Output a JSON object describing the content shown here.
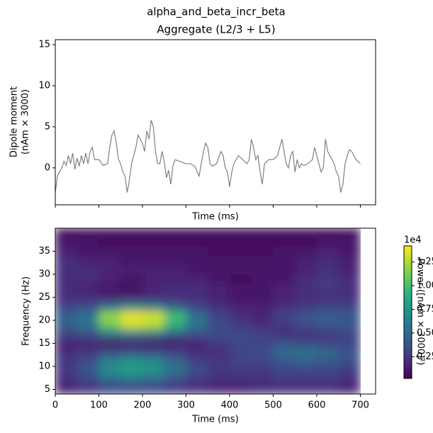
{
  "title": "alpha_and_beta_incr_beta",
  "chart_data": [
    {
      "type": "line",
      "title": "Aggregate (L2/3 + L5)",
      "xlabel": "Time (ms)",
      "ylabel": [
        "Dipole moment",
        "(nAm × 3000)"
      ],
      "color": "#808080",
      "x": [
        0,
        5,
        10,
        15,
        20,
        25,
        30,
        35,
        40,
        45,
        50,
        55,
        60,
        65,
        70,
        75,
        80,
        85,
        90,
        100,
        110,
        120,
        125,
        130,
        135,
        140,
        145,
        150,
        155,
        160,
        165,
        170,
        175,
        180,
        185,
        190,
        195,
        200,
        205,
        210,
        215,
        220,
        225,
        230,
        235,
        240,
        245,
        250,
        255,
        260,
        265,
        270,
        275,
        285,
        300,
        310,
        320,
        330,
        335,
        340,
        345,
        350,
        355,
        360,
        370,
        380,
        385,
        390,
        395,
        400,
        405,
        410,
        420,
        430,
        440,
        445,
        450,
        455,
        460,
        465,
        470,
        475,
        480,
        490,
        500,
        510,
        515,
        520,
        525,
        530,
        535,
        540,
        545,
        550,
        555,
        560,
        565,
        570,
        580,
        590,
        595,
        600,
        605,
        610,
        615,
        620,
        625,
        630,
        640,
        645,
        650,
        655,
        660,
        665,
        670,
        675,
        680,
        690,
        700
      ],
      "values": [
        -3,
        -1,
        -0.5,
        0,
        0.8,
        0.3,
        1.5,
        0.5,
        1.8,
        -0.2,
        1.2,
        0.2,
        1.5,
        0.5,
        1.8,
        0.5,
        2.0,
        2.5,
        1.0,
        1.0,
        0.3,
        0.5,
        2.5,
        4.0,
        4.5,
        3.0,
        1.0,
        0.5,
        -0.5,
        -1.0,
        -3.0,
        -1.5,
        0.5,
        1.5,
        2.5,
        4.0,
        3.5,
        3.0,
        2.0,
        4.5,
        3.5,
        5.8,
        5.0,
        2.0,
        0.5,
        0.5,
        2.0,
        0.8,
        -1.2,
        -0.3,
        -2.0,
        0.3,
        1.0,
        0.8,
        0.5,
        0.5,
        0.2,
        -1.0,
        0.5,
        2.0,
        3.0,
        2.5,
        0.5,
        0.2,
        0.5,
        2.0,
        1.5,
        0.0,
        -0.5,
        -2.3,
        -0.5,
        0.5,
        1.5,
        1.0,
        0.5,
        1.0,
        3.5,
        2.5,
        1.0,
        1.5,
        -0.5,
        -2.0,
        0.5,
        1.0,
        1.0,
        1.5,
        2.5,
        3.5,
        2.0,
        0.5,
        0.0,
        1.5,
        2.0,
        -0.5,
        1.0,
        0.0,
        0.5,
        0.3,
        0.5,
        1.0,
        2.5,
        1.5,
        0.5,
        -0.5,
        0.0,
        3.5,
        2.0,
        1.5,
        0.5,
        -0.5,
        -1.0,
        -3.0,
        -2.0,
        0.5,
        1.5,
        2.2,
        2.0,
        1.0,
        0.5
      ],
      "xlim": [
        0,
        735
      ],
      "xticks": [
        0,
        100,
        200,
        300,
        400,
        500,
        600,
        700
      ],
      "ylim": [
        -4.5,
        15.6
      ],
      "yticks": [
        0,
        5,
        10,
        15
      ]
    },
    {
      "type": "heatmap",
      "xlabel": "Time (ms)",
      "ylabel": "Frequency (Hz)",
      "colormap": "viridis",
      "x": [
        0,
        50,
        100,
        150,
        200,
        250,
        300,
        350,
        400,
        450,
        500,
        550,
        600,
        650,
        700
      ],
      "y": [
        4,
        6,
        8,
        10,
        12,
        14,
        16,
        18,
        20,
        22,
        24,
        26,
        28,
        30,
        32,
        34,
        36,
        38,
        40
      ],
      "values": [
        [
          0.15,
          0.2,
          0.3,
          0.3,
          0.3,
          0.25,
          0.2,
          0.15,
          0.15,
          0.2,
          0.2,
          0.2,
          0.2,
          0.15
        ],
        [
          0.2,
          0.3,
          0.45,
          0.5,
          0.45,
          0.35,
          0.25,
          0.2,
          0.2,
          0.2,
          0.25,
          0.25,
          0.25,
          0.2
        ],
        [
          0.25,
          0.4,
          0.7,
          0.8,
          0.75,
          0.55,
          0.35,
          0.25,
          0.25,
          0.25,
          0.3,
          0.3,
          0.3,
          0.25
        ],
        [
          0.25,
          0.35,
          0.65,
          0.75,
          0.7,
          0.5,
          0.3,
          0.25,
          0.3,
          0.3,
          0.4,
          0.45,
          0.4,
          0.35
        ],
        [
          0.2,
          0.25,
          0.35,
          0.4,
          0.35,
          0.3,
          0.2,
          0.2,
          0.3,
          0.35,
          0.5,
          0.55,
          0.5,
          0.4
        ],
        [
          0.15,
          0.15,
          0.1,
          0.1,
          0.1,
          0.1,
          0.15,
          0.25,
          0.3,
          0.3,
          0.4,
          0.35,
          0.3,
          0.3
        ],
        [
          0.3,
          0.35,
          0.5,
          0.55,
          0.5,
          0.4,
          0.35,
          0.35,
          0.35,
          0.3,
          0.2,
          0.2,
          0.25,
          0.3
        ],
        [
          0.45,
          0.55,
          1.1,
          1.3,
          1.25,
          0.9,
          0.55,
          0.35,
          0.25,
          0.2,
          0.25,
          0.35,
          0.4,
          0.4
        ],
        [
          0.45,
          0.55,
          1.2,
          1.4,
          1.35,
          1.0,
          0.55,
          0.3,
          0.2,
          0.15,
          0.3,
          0.4,
          0.45,
          0.4
        ],
        [
          0.3,
          0.35,
          0.55,
          0.65,
          0.6,
          0.45,
          0.3,
          0.2,
          0.15,
          0.15,
          0.2,
          0.25,
          0.3,
          0.3
        ],
        [
          0.2,
          0.2,
          0.15,
          0.15,
          0.2,
          0.2,
          0.2,
          0.15,
          0.1,
          0.1,
          0.15,
          0.2,
          0.2,
          0.2
        ],
        [
          0.2,
          0.15,
          0.1,
          0.05,
          0.15,
          0.2,
          0.2,
          0.15,
          0.1,
          0.1,
          0.15,
          0.2,
          0.25,
          0.2
        ],
        [
          0.2,
          0.2,
          0.15,
          0.1,
          0.15,
          0.15,
          0.15,
          0.1,
          0.05,
          0.1,
          0.1,
          0.2,
          0.25,
          0.2
        ],
        [
          0.2,
          0.2,
          0.15,
          0.15,
          0.15,
          0.15,
          0.1,
          0.1,
          0.1,
          0.1,
          0.1,
          0.15,
          0.2,
          0.15
        ],
        [
          0.2,
          0.15,
          0.15,
          0.1,
          0.1,
          0.1,
          0.1,
          0.1,
          0.1,
          0.1,
          0.1,
          0.15,
          0.2,
          0.15
        ],
        [
          0.15,
          0.1,
          0.1,
          0.1,
          0.1,
          0.1,
          0.1,
          0.05,
          0.05,
          0.05,
          0.1,
          0.1,
          0.15,
          0.1
        ],
        [
          0.1,
          0.1,
          0.05,
          0.05,
          0.05,
          0.05,
          0.05,
          0.05,
          0.05,
          0.05,
          0.05,
          0.05,
          0.1,
          0.1
        ],
        [
          0.05,
          0.05,
          0.05,
          0.05,
          0.05,
          0.05,
          0.05,
          0.05,
          0.05,
          0.05,
          0.05,
          0.05,
          0.05,
          0.05
        ]
      ],
      "xlim": [
        0,
        735
      ],
      "xticks": [
        0,
        100,
        200,
        300,
        400,
        500,
        600,
        700
      ],
      "ylim": [
        4,
        40
      ],
      "yticks": [
        5,
        10,
        15,
        20,
        25,
        30,
        35
      ],
      "clim": [
        0.02,
        1.42
      ],
      "cticks": [
        0.25,
        {
          "value": 0.5,
          "label": "0.50"
        },
        0.75,
        {
          "value": 1,
          "label": "1.00"
        },
        1.25
      ],
      "colorbar_offset": "1e4",
      "colorbar_label": "Power ([nAm × 3000]²)"
    }
  ]
}
